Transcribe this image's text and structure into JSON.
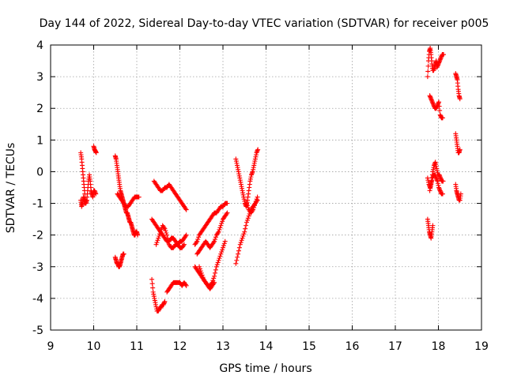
{
  "chart_data": {
    "type": "scatter",
    "title": "Day 144 of 2022, Sidereal Day-to-day VTEC variation (SDTVAR) for receiver p005",
    "xlabel": "GPS time / hours",
    "ylabel": "SDTVAR / TECUs",
    "xlim": [
      9,
      19
    ],
    "ylim": [
      -5,
      4
    ],
    "xticks": [
      9,
      10,
      11,
      12,
      13,
      14,
      15,
      16,
      17,
      18,
      19
    ],
    "yticks": [
      -5,
      -4,
      -3,
      -2,
      -1,
      0,
      1,
      2,
      3,
      4
    ],
    "grid": true,
    "marker": "+",
    "color": "#ff0000",
    "series": [
      {
        "name": "SDTVAR",
        "segments": [
          {
            "x": [
              9.7,
              9.72,
              9.74,
              9.76,
              9.78,
              9.8,
              9.82,
              9.84,
              9.86,
              9.88,
              9.9,
              9.92,
              9.94,
              9.96,
              9.98,
              10.0,
              10.02,
              10.05
            ],
            "y": [
              0.6,
              0.4,
              0.1,
              -0.2,
              -0.5,
              -0.8,
              -1.0,
              -0.9,
              -0.6,
              -0.3,
              -0.1,
              -0.3,
              -0.6,
              -0.7,
              -0.8,
              -0.6,
              -0.6,
              -0.7
            ]
          },
          {
            "x": [
              9.7,
              9.72,
              9.74,
              9.76,
              9.78,
              9.8
            ],
            "y": [
              -0.9,
              -1.1,
              -1.0,
              -0.8,
              -0.9,
              -1.0
            ]
          },
          {
            "x": [
              10.0,
              10.02,
              10.04,
              10.06
            ],
            "y": [
              0.8,
              0.7,
              0.65,
              0.6
            ]
          },
          {
            "x": [
              10.5,
              10.52,
              10.54,
              10.56,
              10.58,
              10.6,
              10.62,
              10.64,
              10.66,
              10.68,
              10.7,
              10.72,
              10.74,
              10.76,
              10.78,
              10.8,
              10.82,
              10.84,
              10.86,
              10.88,
              10.9,
              10.92,
              10.94,
              10.96,
              10.98,
              11.0,
              11.02
            ],
            "y": [
              0.5,
              0.4,
              0.2,
              0.0,
              -0.2,
              -0.4,
              -0.6,
              -0.7,
              -0.8,
              -0.9,
              -1.0,
              -1.1,
              -1.2,
              -1.3,
              -1.3,
              -1.4,
              -1.5,
              -1.6,
              -1.6,
              -1.7,
              -1.8,
              -1.9,
              -2.0,
              -2.0,
              -1.9,
              -1.9,
              -2.0
            ]
          },
          {
            "x": [
              10.55,
              10.6,
              10.65,
              10.7,
              10.75,
              10.8,
              10.85,
              10.9,
              10.95,
              11.0,
              11.05
            ],
            "y": [
              -0.7,
              -0.8,
              -0.9,
              -1.0,
              -1.1,
              -1.1,
              -1.0,
              -0.9,
              -0.8,
              -0.8,
              -0.8
            ]
          },
          {
            "x": [
              10.5,
              10.52,
              10.54,
              10.56,
              10.58,
              10.6,
              10.62,
              10.64,
              10.66,
              10.68,
              10.7
            ],
            "y": [
              -2.7,
              -2.8,
              -2.9,
              -2.9,
              -3.0,
              -3.0,
              -2.9,
              -2.8,
              -2.7,
              -2.6,
              -2.6
            ]
          },
          {
            "x": [
              11.4,
              11.45,
              11.5,
              11.55,
              11.6,
              11.65,
              11.7,
              11.75,
              11.8,
              11.85,
              11.9,
              11.95,
              12.0,
              12.05,
              12.1,
              12.15
            ],
            "y": [
              -0.3,
              -0.4,
              -0.5,
              -0.6,
              -0.6,
              -0.5,
              -0.5,
              -0.4,
              -0.5,
              -0.6,
              -0.7,
              -0.8,
              -0.9,
              -1.0,
              -1.1,
              -1.2
            ]
          },
          {
            "x": [
              11.35,
              11.4,
              11.45,
              11.5,
              11.55,
              11.6,
              11.65,
              11.7,
              11.75,
              11.8,
              11.85,
              11.9,
              11.95,
              12.0,
              12.05,
              12.1,
              12.15
            ],
            "y": [
              -1.5,
              -1.6,
              -1.7,
              -1.8,
              -1.9,
              -2.0,
              -2.1,
              -2.2,
              -2.2,
              -2.1,
              -2.1,
              -2.2,
              -2.3,
              -2.2,
              -2.2,
              -2.1,
              -2.0
            ]
          },
          {
            "x": [
              11.45,
              11.5,
              11.55,
              11.6,
              11.65,
              11.7,
              11.75,
              11.8,
              11.85,
              11.9,
              11.95,
              12.0,
              12.05,
              12.1
            ],
            "y": [
              -2.3,
              -2.1,
              -1.9,
              -1.7,
              -1.8,
              -2.0,
              -2.3,
              -2.4,
              -2.4,
              -2.3,
              -2.3,
              -2.4,
              -2.4,
              -2.3
            ]
          },
          {
            "x": [
              11.35,
              11.38,
              11.41,
              11.44,
              11.47,
              11.5,
              11.53,
              11.56,
              11.59,
              11.62,
              11.65
            ],
            "y": [
              -3.4,
              -3.8,
              -4.0,
              -4.2,
              -4.4,
              -4.4,
              -4.3,
              -4.3,
              -4.2,
              -4.2,
              -4.1
            ]
          },
          {
            "x": [
              11.7,
              11.75,
              11.8,
              11.85,
              11.9,
              11.95,
              12.0,
              12.05,
              12.1,
              12.15
            ],
            "y": [
              -3.8,
              -3.7,
              -3.6,
              -3.5,
              -3.5,
              -3.5,
              -3.5,
              -3.6,
              -3.5,
              -3.6
            ]
          },
          {
            "x": [
              12.35,
              12.4,
              12.45,
              12.5,
              12.55,
              12.6,
              12.65,
              12.7,
              12.75,
              12.8,
              12.85,
              12.9,
              12.95,
              13.0,
              13.05,
              13.1
            ],
            "y": [
              -2.3,
              -2.2,
              -2.0,
              -1.9,
              -1.8,
              -1.7,
              -1.6,
              -1.5,
              -1.4,
              -1.3,
              -1.3,
              -1.2,
              -1.1,
              -1.1,
              -1.0,
              -1.0
            ]
          },
          {
            "x": [
              12.35,
              12.4,
              12.45,
              12.5,
              12.55,
              12.6,
              12.65,
              12.7,
              12.75,
              12.8,
              12.85,
              12.9,
              12.95,
              13.0,
              13.05
            ],
            "y": [
              -3.0,
              -3.1,
              -3.2,
              -3.3,
              -3.4,
              -3.5,
              -3.6,
              -3.6,
              -3.5,
              -3.3,
              -3.0,
              -2.8,
              -2.6,
              -2.4,
              -2.2
            ]
          },
          {
            "x": [
              12.4,
              12.45,
              12.5,
              12.55,
              12.6,
              12.65,
              12.7,
              12.75,
              12.8,
              12.85,
              12.9,
              12.95,
              13.0,
              13.05,
              13.1
            ],
            "y": [
              -2.6,
              -2.5,
              -2.4,
              -2.3,
              -2.2,
              -2.3,
              -2.4,
              -2.3,
              -2.2,
              -2.0,
              -1.9,
              -1.7,
              -1.5,
              -1.4,
              -1.3
            ]
          },
          {
            "x": [
              12.45,
              12.5,
              12.55,
              12.6,
              12.65,
              12.7,
              12.75,
              12.8
            ],
            "y": [
              -3.0,
              -3.2,
              -3.4,
              -3.5,
              -3.6,
              -3.7,
              -3.6,
              -3.5
            ]
          },
          {
            "x": [
              13.3,
              13.33,
              13.36,
              13.39,
              13.42,
              13.45,
              13.48,
              13.51,
              13.54,
              13.57,
              13.6,
              13.63,
              13.66,
              13.69,
              13.72,
              13.75,
              13.78,
              13.81
            ],
            "y": [
              0.4,
              0.2,
              0.0,
              -0.2,
              -0.4,
              -0.6,
              -0.8,
              -1.0,
              -1.1,
              -0.9,
              -0.6,
              -0.3,
              -0.1,
              0.0,
              0.2,
              0.4,
              0.6,
              0.7
            ]
          },
          {
            "x": [
              13.3,
              13.35,
              13.4,
              13.45,
              13.5,
              13.55,
              13.6,
              13.65,
              13.7,
              13.75,
              13.8
            ],
            "y": [
              -2.9,
              -2.6,
              -2.3,
              -2.1,
              -1.9,
              -1.6,
              -1.4,
              -1.2,
              -1.1,
              -1.0,
              -0.8
            ]
          },
          {
            "x": [
              13.55,
              13.6,
              13.65,
              13.7,
              13.75,
              13.8
            ],
            "y": [
              -1.0,
              -1.2,
              -1.3,
              -1.2,
              -1.0,
              -0.9
            ]
          },
          {
            "x": [
              17.75,
              17.77,
              17.79,
              17.81,
              17.83,
              17.85,
              17.87,
              17.89,
              17.91,
              17.93,
              17.95,
              17.97,
              18.0,
              18.03,
              18.06,
              18.09,
              18.12
            ],
            "y": [
              3.0,
              3.5,
              3.8,
              3.9,
              3.7,
              3.4,
              3.2,
              3.2,
              3.3,
              3.4,
              3.5,
              3.3,
              3.4,
              3.5,
              3.6,
              3.7,
              3.7
            ]
          },
          {
            "x": [
              17.8,
              17.83,
              17.86,
              17.89,
              17.92,
              17.95,
              17.98,
              18.01,
              18.04,
              18.07,
              18.1
            ],
            "y": [
              2.4,
              2.3,
              2.2,
              2.1,
              2.0,
              2.0,
              2.1,
              2.2,
              1.8,
              1.7,
              1.7
            ]
          },
          {
            "x": [
              17.75,
              17.78,
              17.81,
              17.84,
              17.87,
              17.9,
              17.93,
              17.96,
              17.99,
              18.02,
              18.05,
              18.08,
              18.11
            ],
            "y": [
              -0.2,
              -0.4,
              -0.5,
              -0.3,
              0.0,
              0.2,
              0.3,
              0.1,
              -0.1,
              -0.1,
              -0.2,
              -0.3,
              -0.3
            ]
          },
          {
            "x": [
              17.8,
              17.83,
              17.86,
              17.89,
              17.92,
              17.95,
              17.98,
              18.01,
              18.04,
              18.07,
              18.1
            ],
            "y": [
              -0.6,
              -0.4,
              -0.2,
              -0.1,
              -0.1,
              -0.2,
              -0.3,
              -0.5,
              -0.6,
              -0.7,
              -0.7
            ]
          },
          {
            "x": [
              17.75,
              17.77,
              17.79,
              17.81,
              17.83,
              17.85,
              17.87
            ],
            "y": [
              -1.5,
              -1.7,
              -1.9,
              -2.0,
              -2.1,
              -1.9,
              -1.7
            ]
          },
          {
            "x": [
              18.4,
              18.42,
              18.44,
              18.46,
              18.48,
              18.5
            ],
            "y": [
              3.1,
              3.0,
              2.9,
              2.6,
              2.4,
              2.3
            ]
          },
          {
            "x": [
              18.4,
              18.42,
              18.44,
              18.46,
              18.48,
              18.5
            ],
            "y": [
              1.2,
              1.0,
              0.8,
              0.6,
              0.6,
              0.7
            ]
          },
          {
            "x": [
              18.4,
              18.42,
              18.44,
              18.46,
              18.48,
              18.5,
              18.52
            ],
            "y": [
              -0.4,
              -0.6,
              -0.7,
              -0.8,
              -0.9,
              -0.9,
              -0.7
            ]
          }
        ]
      }
    ]
  }
}
